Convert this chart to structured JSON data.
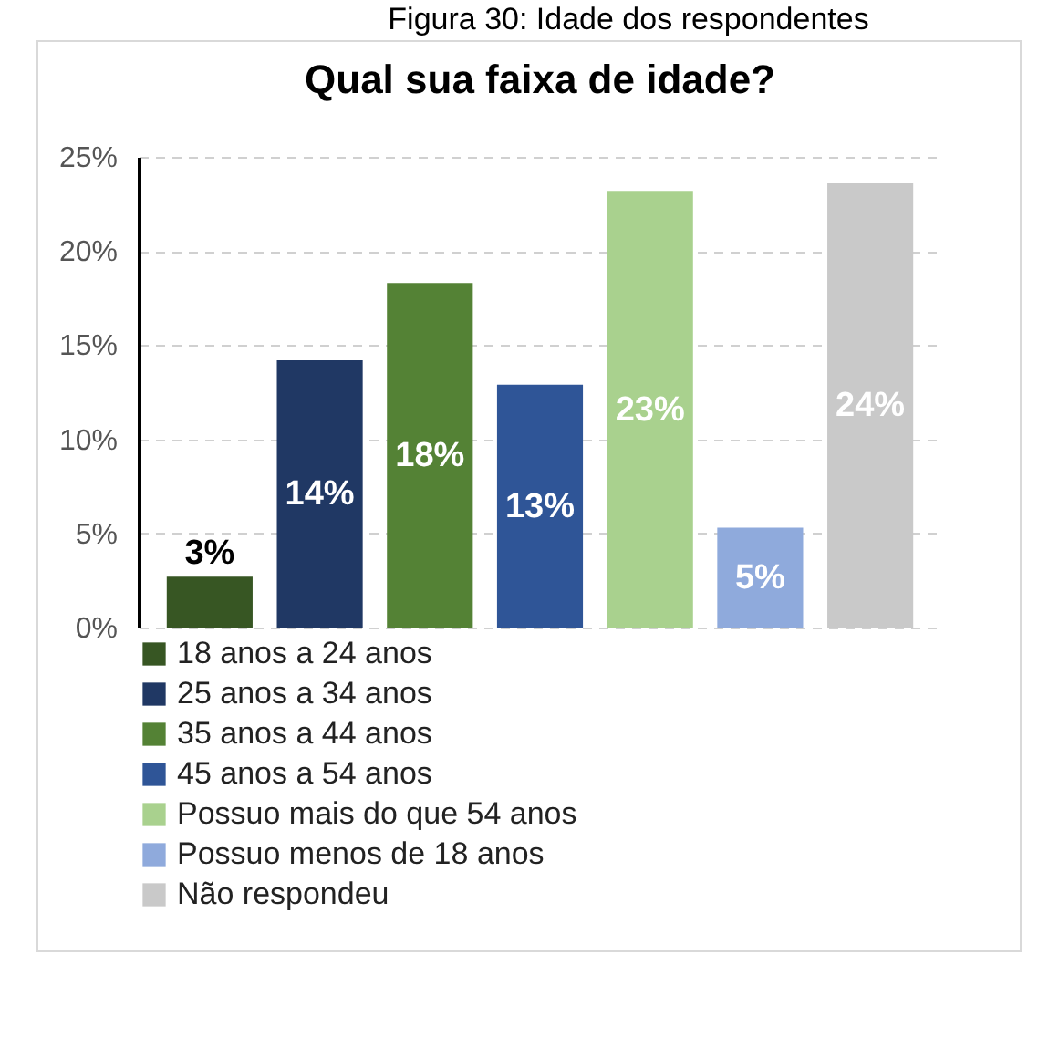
{
  "chart_data": {
    "type": "bar",
    "title": "Qual sua faixa de idade?",
    "annotations": [
      "Figura 30: Idade dos respondentes"
    ],
    "categories": [
      null
    ],
    "series": [
      {
        "name": "18 anos a 24 anos",
        "color": "#375623",
        "values": [
          2.7
        ],
        "value_labels": [
          "3%"
        ]
      },
      {
        "name": "25 anos a 34 anos",
        "color": "#203864",
        "values": [
          14.2
        ],
        "value_labels": [
          "14%"
        ]
      },
      {
        "name": "35 anos a 44 anos",
        "color": "#548235",
        "values": [
          18.3
        ],
        "value_labels": [
          "18%"
        ]
      },
      {
        "name": "45 anos a 54 anos",
        "color": "#2f5597",
        "values": [
          12.9
        ],
        "value_labels": [
          "13%"
        ]
      },
      {
        "name": "Possuo mais do que 54 anos",
        "color": "#a9d18e",
        "values": [
          23.2
        ],
        "value_labels": [
          "23%"
        ]
      },
      {
        "name": "Possuo menos de 18 anos",
        "color": "#8faadc",
        "values": [
          5.3
        ],
        "value_labels": [
          "5%"
        ]
      },
      {
        "name": "Não respondeu",
        "color": "#c9c9c9",
        "values": [
          23.6
        ],
        "value_labels": [
          "24%"
        ]
      }
    ],
    "ylim": [
      0,
      25
    ],
    "yticks": [
      {
        "value": 0,
        "label": "0%"
      },
      {
        "value": 5,
        "label": "5%"
      },
      {
        "value": 10,
        "label": "10%"
      },
      {
        "value": 15,
        "label": "15%"
      },
      {
        "value": 20,
        "label": "20%"
      },
      {
        "value": 25,
        "label": "25%"
      }
    ],
    "grid": "y",
    "legend": "bottom left",
    "tick_labels": "y"
  }
}
